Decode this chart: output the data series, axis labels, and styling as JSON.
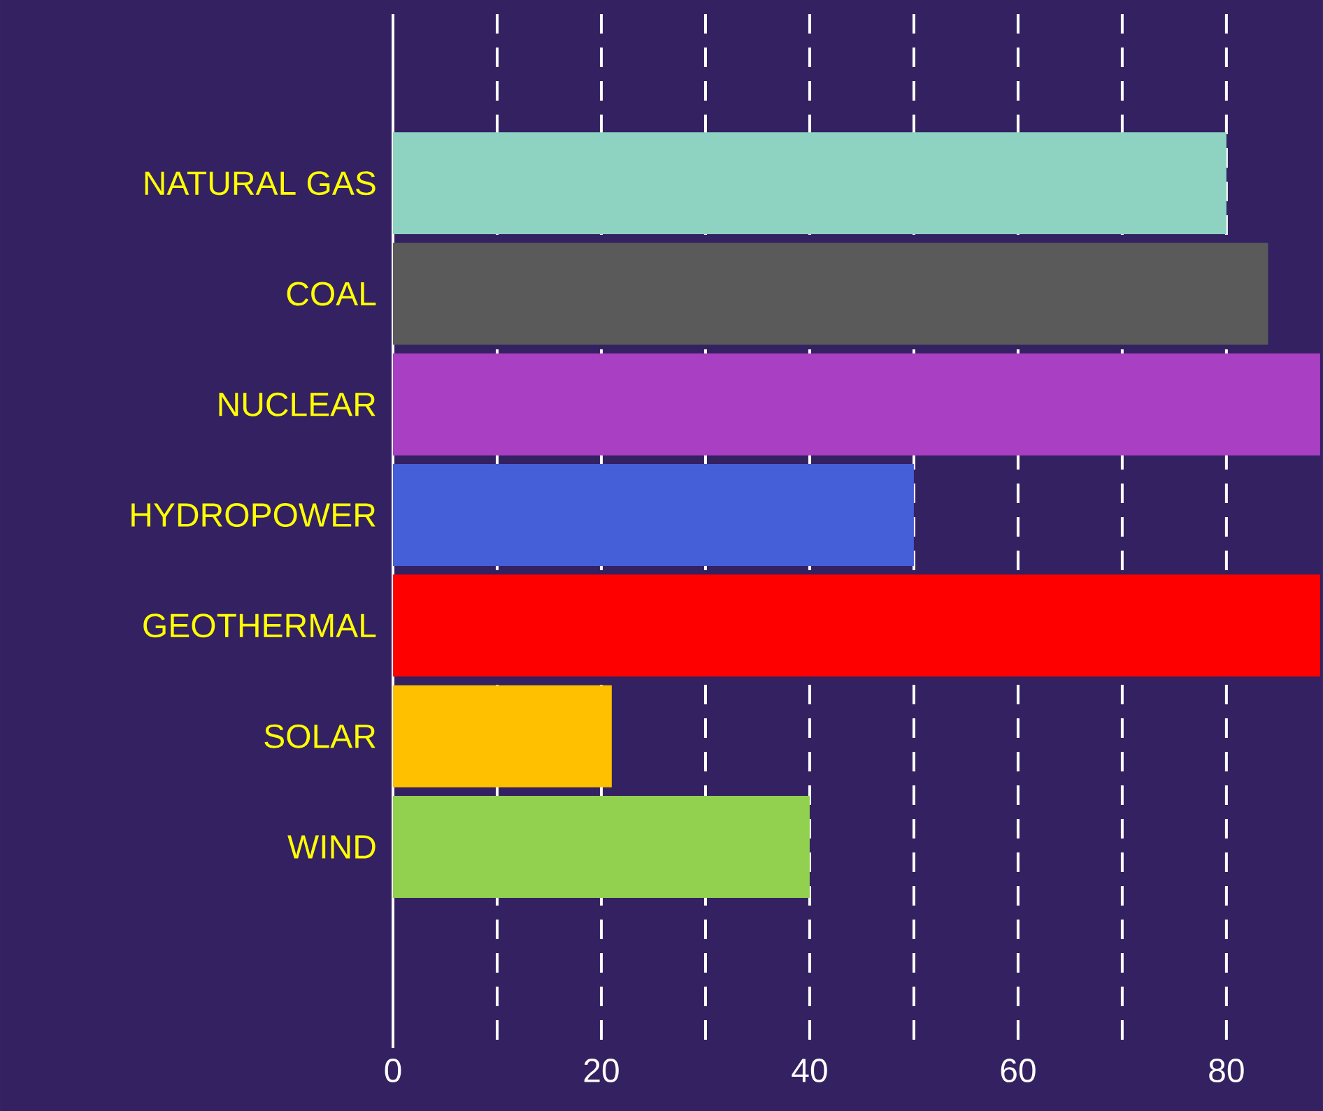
{
  "chart_data": {
    "type": "bar",
    "orientation": "horizontal",
    "categories": [
      "NATURAL GAS",
      "COAL",
      "NUCLEAR",
      "HYDROPOWER",
      "GEOTHERMAL",
      "SOLAR",
      "WIND"
    ],
    "values": [
      80,
      84,
      89,
      50,
      89,
      21,
      40
    ],
    "colors": [
      "#8ed3c2",
      "#5a5a5a",
      "#a93fc2",
      "#445fd8",
      "#ff0000",
      "#ffc000",
      "#92d050"
    ],
    "xlim": [
      0,
      89
    ],
    "xticks": [
      0,
      {
        "value": 10,
        "label": null
      },
      20,
      {
        "value": 30,
        "label": null
      },
      40,
      {
        "value": 50,
        "label": null
      },
      60,
      {
        "value": 70,
        "label": null
      },
      80
    ],
    "grid": "x"
  }
}
